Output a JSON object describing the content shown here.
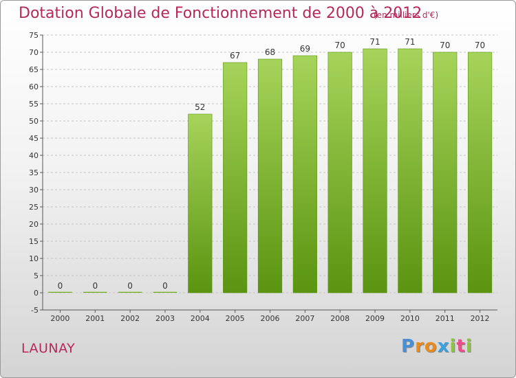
{
  "title": "Dotation Globale de Fonctionnement de 2000 à 2012",
  "subtitle": "(en milliers d'€)",
  "place": "LAUNAY",
  "logo": {
    "letters": [
      "P",
      "r",
      "o",
      "x",
      "i",
      "t",
      "i"
    ],
    "colors": [
      "#4a8fd4",
      "#e98a1c",
      "#e98a1c",
      "#3aa0e0",
      "#8cc63f",
      "#e84f8a",
      "#8cc63f"
    ]
  },
  "colors": {
    "bar": "#7ab51d",
    "bar_light": "#a6d45a",
    "bar_dark": "#5a9410",
    "title": "#b5285a"
  },
  "chart_data": {
    "type": "bar",
    "categories": [
      "2000",
      "2001",
      "2002",
      "2003",
      "2004",
      "2005",
      "2006",
      "2007",
      "2008",
      "2009",
      "2010",
      "2011",
      "2012"
    ],
    "values": [
      0,
      0,
      0,
      0,
      52,
      67,
      68,
      69,
      70,
      71,
      71,
      70,
      70
    ],
    "ylim": [
      -5,
      75
    ],
    "yticks": [
      -5,
      0,
      5,
      10,
      15,
      20,
      25,
      30,
      35,
      40,
      45,
      50,
      55,
      60,
      65,
      70,
      75
    ],
    "grid": "horizontal dashed",
    "legend": "none"
  }
}
